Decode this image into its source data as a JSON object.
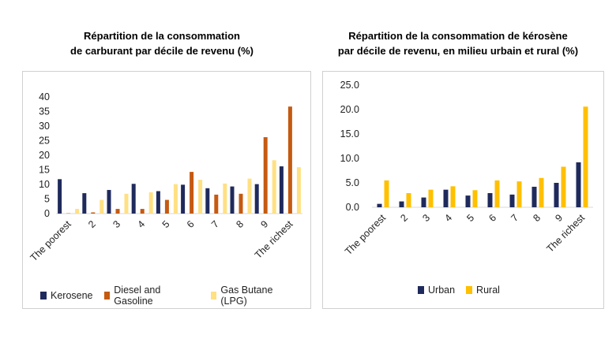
{
  "chart_data": [
    {
      "type": "bar",
      "title_line1": "Répartition de la consommation",
      "title_line2": "de carburant par décile de revenu (%)",
      "categories": [
        "The poorest",
        "2",
        "3",
        "4",
        "5",
        "6",
        "7",
        "8",
        "9",
        "The richest"
      ],
      "yticks": [
        "0",
        "5",
        "10",
        "15",
        "20",
        "25",
        "30",
        "35",
        "40"
      ],
      "ylim": [
        0,
        40
      ],
      "grid": false,
      "legend_position": "bottom",
      "series": [
        {
          "name": "Kerosene",
          "color": "#1f2a5c",
          "values": [
            11.8,
            7.0,
            8.1,
            10.2,
            7.7,
            9.9,
            8.7,
            9.3,
            10.1,
            16.2
          ]
        },
        {
          "name": "Diesel and Gasoline",
          "color": "#c55a11",
          "values": [
            0.1,
            0.4,
            1.6,
            1.6,
            4.7,
            14.3,
            6.5,
            6.8,
            26.2,
            36.7
          ]
        },
        {
          "name": "Gas Butane (LPG)",
          "color": "#ffe083",
          "values": [
            1.6,
            4.7,
            6.8,
            7.3,
            10.1,
            11.6,
            10.3,
            12.0,
            18.3,
            15.9
          ]
        }
      ]
    },
    {
      "type": "bar",
      "title_line1": "Répartition de la consommation de kérosène",
      "title_line2": "par décile de revenu, en milieu urbain et rural (%)",
      "categories": [
        "The poorest",
        "2",
        "3",
        "4",
        "5",
        "6",
        "7",
        "8",
        "9",
        "The richest"
      ],
      "yticks": [
        "0.0",
        "5.0",
        "10.0",
        "15.0",
        "20.0",
        "25.0"
      ],
      "ylim": [
        0,
        25
      ],
      "grid": false,
      "legend_position": "bottom",
      "series": [
        {
          "name": "Urban",
          "color": "#1f2a5c",
          "values": [
            0.7,
            1.2,
            2.0,
            3.6,
            2.4,
            2.9,
            2.6,
            4.2,
            5.0,
            9.2
          ]
        },
        {
          "name": "Rural",
          "color": "#ffc000",
          "values": [
            5.5,
            2.9,
            3.6,
            4.3,
            3.5,
            5.5,
            5.3,
            6.0,
            8.3,
            20.6
          ]
        }
      ]
    }
  ]
}
